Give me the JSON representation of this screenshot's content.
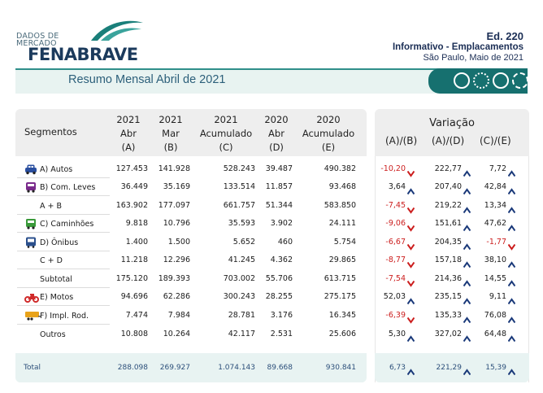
{
  "header": {
    "logo_small": "DADOS DE\nMERCADO",
    "logo_main": "FENABRAVE",
    "edition": "Ed. 220",
    "subtitle": "Informativo - Emplacamentos",
    "location_date": "São Paulo, Maio de 2021"
  },
  "band": {
    "title": "Resumo Mensal Abril de 2021"
  },
  "table": {
    "segments_header": "Segmentos",
    "columns": [
      {
        "l1": "2021",
        "l2": "Abr",
        "l3": "(A)"
      },
      {
        "l1": "2021",
        "l2": "Mar",
        "l3": "(B)"
      },
      {
        "l1": "2021",
        "l2": "Acumulado",
        "l3": "(C)"
      },
      {
        "l1": "2020",
        "l2": "Abr",
        "l3": "(D)"
      },
      {
        "l1": "2020",
        "l2": "Acumulado",
        "l3": "(E)"
      }
    ],
    "variation_header": "Variação",
    "variation_cols": [
      "(A)/(B)",
      "(A)/(D)",
      "(C)/(E)"
    ],
    "rows": [
      {
        "label": "A) Autos",
        "icon": "car-icon",
        "icon_color": "#2a4fa0",
        "values": [
          "127.453",
          "141.928",
          "528.243",
          "39.487",
          "490.382"
        ],
        "var": [
          "-10,20",
          "222,77",
          "7,72"
        ],
        "dir": [
          "down",
          "up",
          "up"
        ]
      },
      {
        "label": "B) Com. Leves",
        "icon": "van-icon",
        "icon_color": "#7a2a8c",
        "values": [
          "36.449",
          "35.169",
          "133.514",
          "11.857",
          "93.468"
        ],
        "var": [
          "3,64",
          "207,40",
          "42,84"
        ],
        "dir": [
          "up",
          "up",
          "up"
        ]
      },
      {
        "label": "A + B",
        "icon": "",
        "icon_color": "",
        "values": [
          "163.902",
          "177.097",
          "661.757",
          "51.344",
          "583.850"
        ],
        "var": [
          "-7,45",
          "219,22",
          "13,34"
        ],
        "dir": [
          "down",
          "up",
          "up"
        ]
      },
      {
        "label": "C) Caminhões",
        "icon": "truck-icon",
        "icon_color": "#3a9a3a",
        "values": [
          "9.818",
          "10.796",
          "35.593",
          "3.902",
          "24.111"
        ],
        "var": [
          "-9,06",
          "151,61",
          "47,62"
        ],
        "dir": [
          "down",
          "up",
          "up"
        ]
      },
      {
        "label": "D) Ônibus",
        "icon": "bus-icon",
        "icon_color": "#2a4f8c",
        "values": [
          "1.400",
          "1.500",
          "5.652",
          "460",
          "5.754"
        ],
        "var": [
          "-6,67",
          "204,35",
          "-1,77"
        ],
        "dir": [
          "down",
          "up",
          "down"
        ]
      },
      {
        "label": "C + D",
        "icon": "",
        "icon_color": "",
        "values": [
          "11.218",
          "12.296",
          "41.245",
          "4.362",
          "29.865"
        ],
        "var": [
          "-8,77",
          "157,18",
          "38,10"
        ],
        "dir": [
          "down",
          "up",
          "up"
        ]
      },
      {
        "label": "Subtotal",
        "icon": "",
        "icon_color": "",
        "values": [
          "175.120",
          "189.393",
          "703.002",
          "55.706",
          "613.715"
        ],
        "var": [
          "-7,54",
          "214,36",
          "14,55"
        ],
        "dir": [
          "down",
          "up",
          "up"
        ]
      },
      {
        "label": "E) Motos",
        "icon": "motorcycle-icon",
        "icon_color": "#d02a2a",
        "values": [
          "94.696",
          "62.286",
          "300.243",
          "28.255",
          "275.175"
        ],
        "var": [
          "52,03",
          "235,15",
          "9,11"
        ],
        "dir": [
          "up",
          "up",
          "up"
        ]
      },
      {
        "label": "F) Impl. Rod.",
        "icon": "trailer-icon",
        "icon_color": "#e8a21a",
        "values": [
          "7.474",
          "7.984",
          "28.781",
          "3.176",
          "16.345"
        ],
        "var": [
          "-6,39",
          "135,33",
          "76,08"
        ],
        "dir": [
          "down",
          "up",
          "up"
        ]
      },
      {
        "label": "Outros",
        "icon": "",
        "icon_color": "",
        "values": [
          "10.808",
          "10.264",
          "42.117",
          "2.531",
          "25.606"
        ],
        "var": [
          "5,30",
          "327,02",
          "64,48"
        ],
        "dir": [
          "up",
          "up",
          "up"
        ]
      }
    ],
    "total": {
      "label": "Total",
      "values": [
        "288.098",
        "269.927",
        "1.074.143",
        "89.668",
        "930.841"
      ],
      "var": [
        "6,73",
        "221,29",
        "15,39"
      ],
      "dir": [
        "up",
        "up",
        "up"
      ]
    }
  },
  "colors": {
    "accent": "#16706f",
    "up_arrow": "#1b3a7a",
    "down_arrow": "#cc1f1f",
    "negative": "#cc1f1f"
  }
}
